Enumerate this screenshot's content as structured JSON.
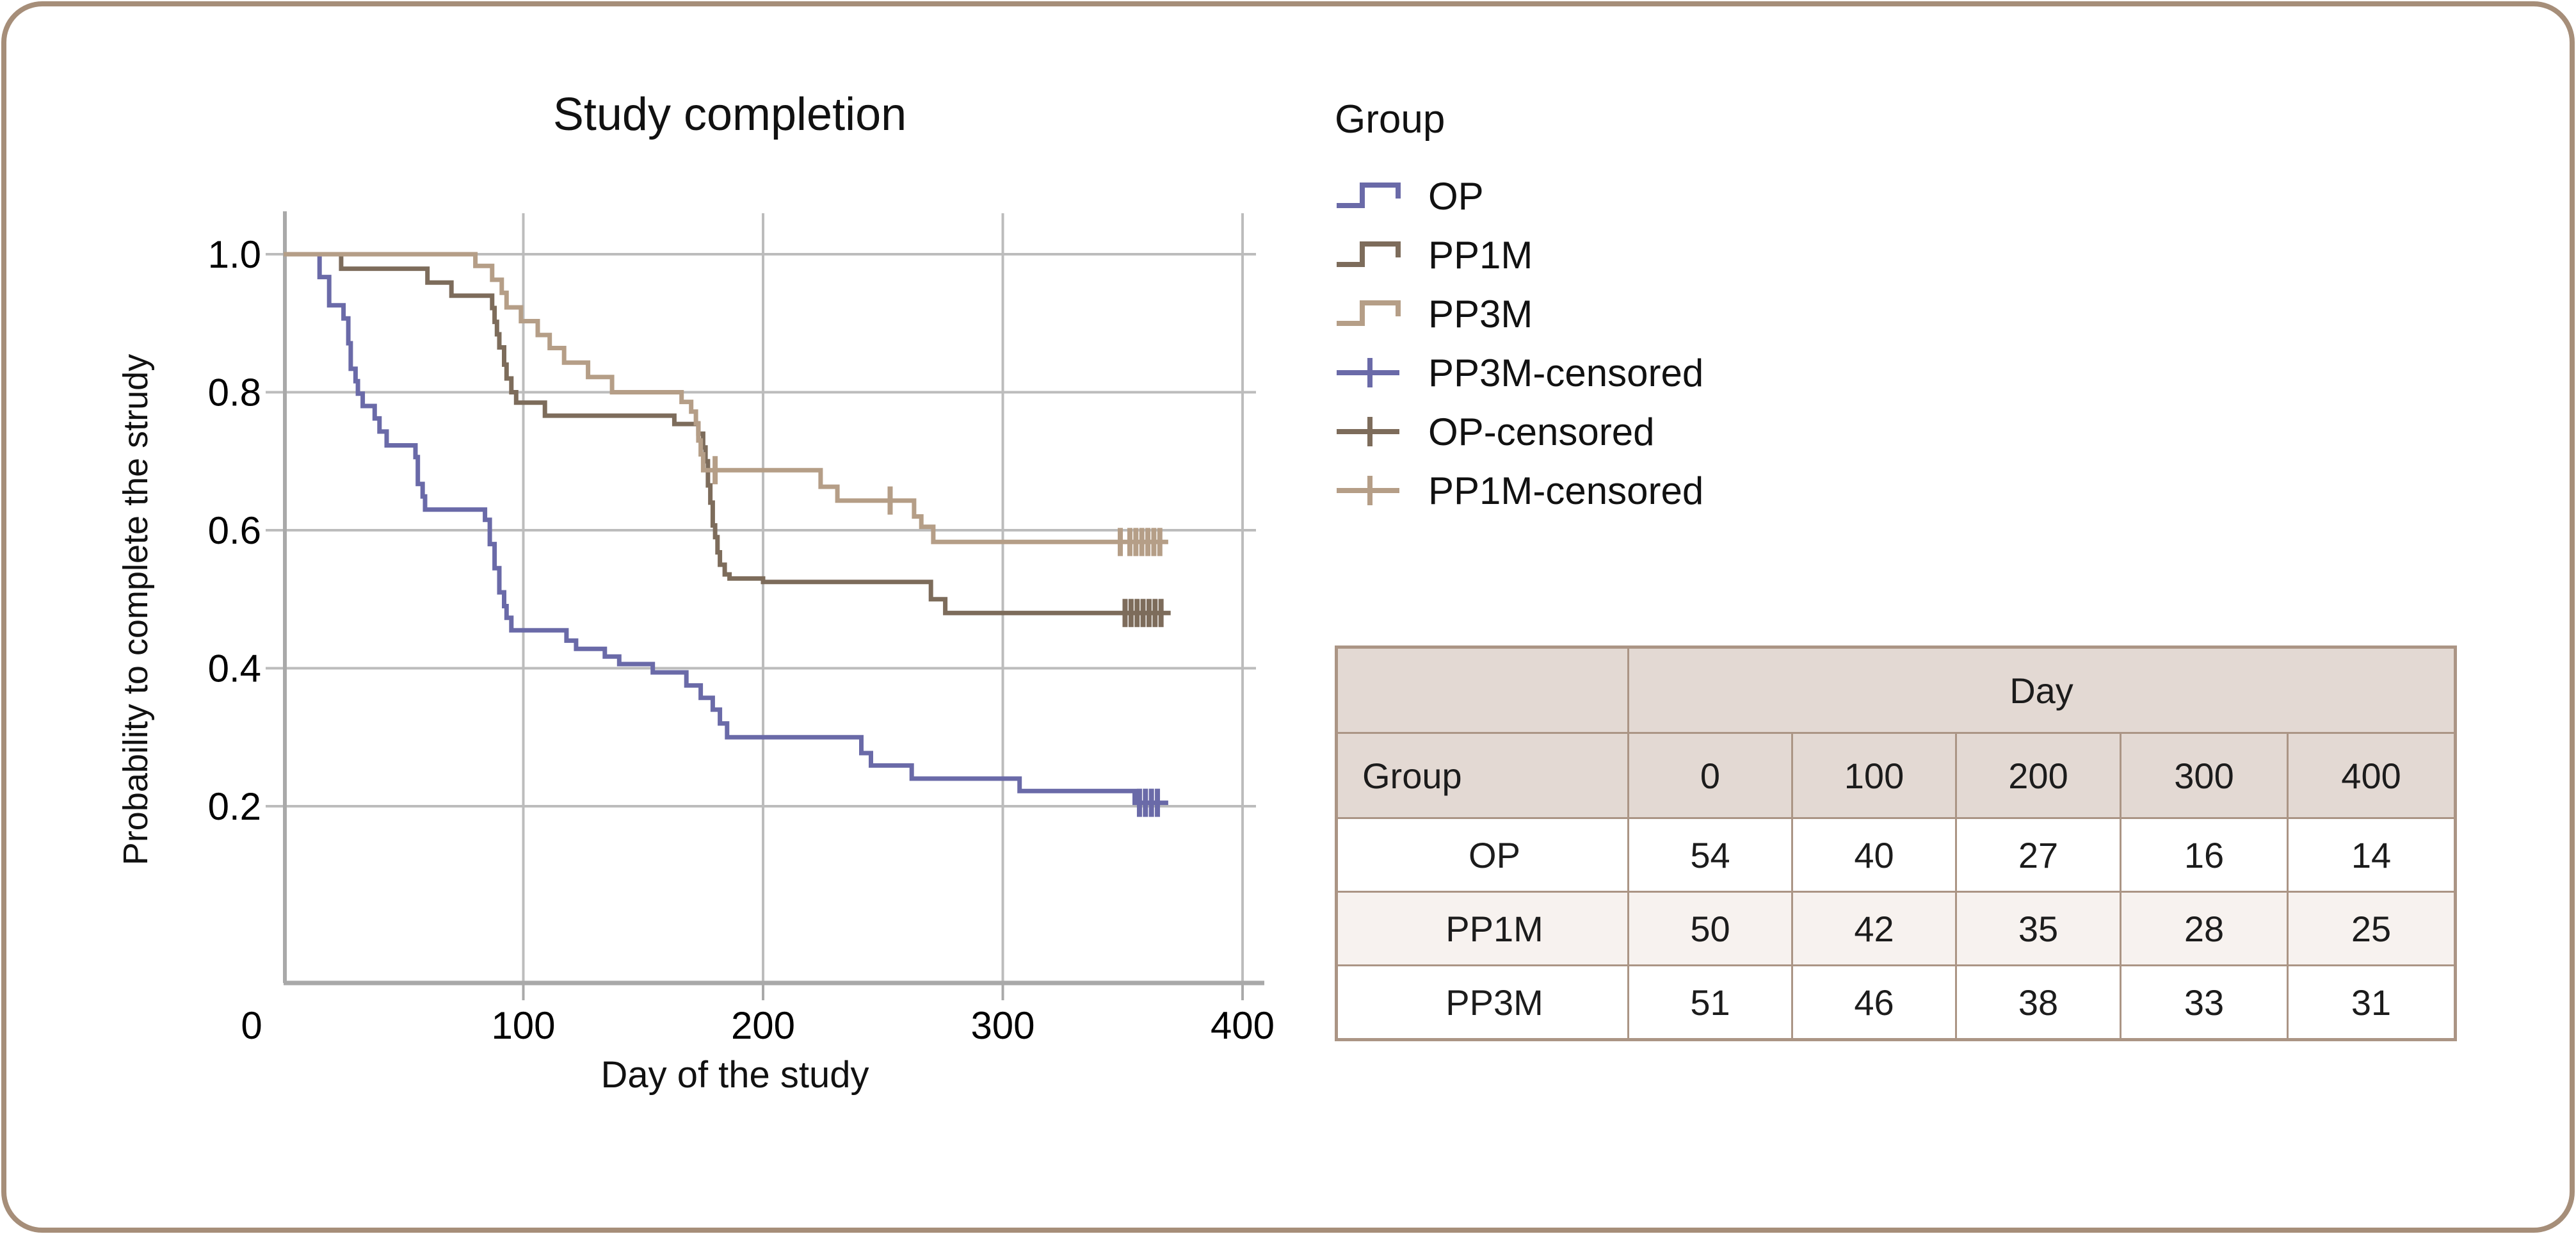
{
  "figure": {
    "frame_color": "#a68e79",
    "background": "#ffffff"
  },
  "chart_data": {
    "type": "line",
    "step": true,
    "title": "Study completion",
    "xlabel": "Day of the study",
    "ylabel": "Probability to complete the strudy",
    "xlim": [
      0,
      405
    ],
    "ylim": [
      -0.06,
      1.06
    ],
    "grid": true,
    "xticks": [
      {
        "label": "0",
        "day": 0
      },
      {
        "label": "100",
        "day": 100
      },
      {
        "label": "200",
        "day": 200
      },
      {
        "label": "300",
        "day": 300
      },
      {
        "label": "400",
        "day": 400
      }
    ],
    "yticks": [
      {
        "label": "1.0",
        "value": 1.0
      },
      {
        "label": "0.8",
        "value": 0.8
      },
      {
        "label": "0.6",
        "value": 0.6
      },
      {
        "label": "0.4",
        "value": 0.4
      },
      {
        "label": "0.2",
        "value": 0.2
      }
    ],
    "series": [
      {
        "name": "OP",
        "color": "#6a6aa8",
        "steps": [
          [
            0,
            1.0
          ],
          [
            15,
            0.967
          ],
          [
            19,
            0.926
          ],
          [
            25,
            0.907
          ],
          [
            27,
            0.871
          ],
          [
            28,
            0.834
          ],
          [
            30,
            0.816
          ],
          [
            31,
            0.798
          ],
          [
            33,
            0.78
          ],
          [
            38,
            0.762
          ],
          [
            40,
            0.743
          ],
          [
            43,
            0.723
          ],
          [
            55,
            0.706
          ],
          [
            56,
            0.667
          ],
          [
            58,
            0.649
          ],
          [
            59,
            0.63
          ],
          [
            84,
            0.615
          ],
          [
            86,
            0.58
          ],
          [
            88,
            0.545
          ],
          [
            90,
            0.51
          ],
          [
            92,
            0.49
          ],
          [
            93,
            0.473
          ],
          [
            95,
            0.455
          ],
          [
            118,
            0.44
          ],
          [
            122,
            0.428
          ],
          [
            134,
            0.417
          ],
          [
            140,
            0.406
          ],
          [
            154,
            0.394
          ],
          [
            168,
            0.375
          ],
          [
            174,
            0.357
          ],
          [
            179,
            0.34
          ],
          [
            182,
            0.32
          ],
          [
            185,
            0.3
          ],
          [
            241,
            0.277
          ],
          [
            245,
            0.259
          ],
          [
            262,
            0.24
          ],
          [
            307,
            0.222
          ],
          [
            355,
            0.205
          ],
          [
            369,
            0.205
          ]
        ],
        "censored": [
          [
            357,
            0.205
          ],
          [
            359.5,
            0.205
          ],
          [
            362,
            0.205
          ],
          [
            364.5,
            0.205
          ]
        ]
      },
      {
        "name": "PP1M",
        "color": "#7d6c5b",
        "steps": [
          [
            0,
            1.0
          ],
          [
            24,
            0.979
          ],
          [
            60,
            0.959
          ],
          [
            70,
            0.94
          ],
          [
            87,
            0.922
          ],
          [
            88,
            0.902
          ],
          [
            89,
            0.884
          ],
          [
            90,
            0.865
          ],
          [
            92,
            0.84
          ],
          [
            93,
            0.82
          ],
          [
            95,
            0.8
          ],
          [
            97,
            0.785
          ],
          [
            109,
            0.766
          ],
          [
            163,
            0.754
          ],
          [
            173,
            0.74
          ],
          [
            175,
            0.72
          ],
          [
            176,
            0.7
          ],
          [
            177,
            0.665
          ],
          [
            178,
            0.64
          ],
          [
            179,
            0.607
          ],
          [
            180,
            0.59
          ],
          [
            181,
            0.568
          ],
          [
            182,
            0.55
          ],
          [
            184,
            0.536
          ],
          [
            186,
            0.53
          ],
          [
            200,
            0.525
          ],
          [
            270,
            0.5
          ],
          [
            276,
            0.48
          ],
          [
            370,
            0.48
          ]
        ],
        "censored": [
          [
            351,
            0.48
          ],
          [
            353.5,
            0.48
          ],
          [
            356,
            0.48
          ],
          [
            358.5,
            0.48
          ],
          [
            361,
            0.48
          ],
          [
            363.5,
            0.48
          ],
          [
            366,
            0.48
          ]
        ]
      },
      {
        "name": "PP3M",
        "color": "#b59e87",
        "steps": [
          [
            0,
            1.0
          ],
          [
            80,
            0.983
          ],
          [
            87,
            0.963
          ],
          [
            91,
            0.944
          ],
          [
            93,
            0.923
          ],
          [
            99,
            0.903
          ],
          [
            106,
            0.883
          ],
          [
            111,
            0.864
          ],
          [
            117,
            0.843
          ],
          [
            127,
            0.822
          ],
          [
            137,
            0.8
          ],
          [
            166,
            0.786
          ],
          [
            170,
            0.772
          ],
          [
            172,
            0.755
          ],
          [
            173,
            0.73
          ],
          [
            174,
            0.71
          ],
          [
            175,
            0.687
          ],
          [
            224,
            0.663
          ],
          [
            231,
            0.643
          ],
          [
            263,
            0.62
          ],
          [
            266,
            0.605
          ],
          [
            271,
            0.583
          ],
          [
            369,
            0.583
          ]
        ],
        "censored": [
          [
            180,
            0.687
          ],
          [
            253,
            0.643
          ],
          [
            349,
            0.583
          ],
          [
            353,
            0.583
          ],
          [
            355.5,
            0.583
          ],
          [
            358,
            0.583
          ],
          [
            360.5,
            0.583
          ],
          [
            363,
            0.583
          ],
          [
            365.5,
            0.583
          ]
        ]
      }
    ],
    "axis_color": "#a9a9a9",
    "grid_color": "#bcbcbc",
    "tick_label_color": "#000000"
  },
  "legend": {
    "title": "Group",
    "position": "right-top",
    "items": [
      {
        "label": "OP",
        "type": "step",
        "color": "#6a6aa8"
      },
      {
        "label": "PP1M",
        "type": "step",
        "color": "#7d6c5b"
      },
      {
        "label": "PP3M",
        "type": "step",
        "color": "#b59e87"
      },
      {
        "label": "PP3M-censored",
        "type": "censored",
        "color": "#6a6aa8"
      },
      {
        "label": "OP-censored",
        "type": "censored",
        "color": "#7d6c5b"
      },
      {
        "label": "PP1M-censored",
        "type": "censored",
        "color": "#b59e87"
      }
    ]
  },
  "table": {
    "day_header": "Day",
    "group_header": "Group",
    "columns": [
      "0",
      "100",
      "200",
      "300",
      "400"
    ],
    "rows": [
      {
        "group": "OP",
        "values": [
          "54",
          "40",
          "27",
          "16",
          "14"
        ]
      },
      {
        "group": "PP1M",
        "values": [
          "50",
          "42",
          "35",
          "28",
          "25"
        ]
      },
      {
        "group": "PP3M",
        "values": [
          "51",
          "46",
          "38",
          "33",
          "31"
        ]
      }
    ],
    "header_bg": "#e3d9d3",
    "stripe_bg": "#f7f2ef",
    "border_color": "#ab9585"
  }
}
